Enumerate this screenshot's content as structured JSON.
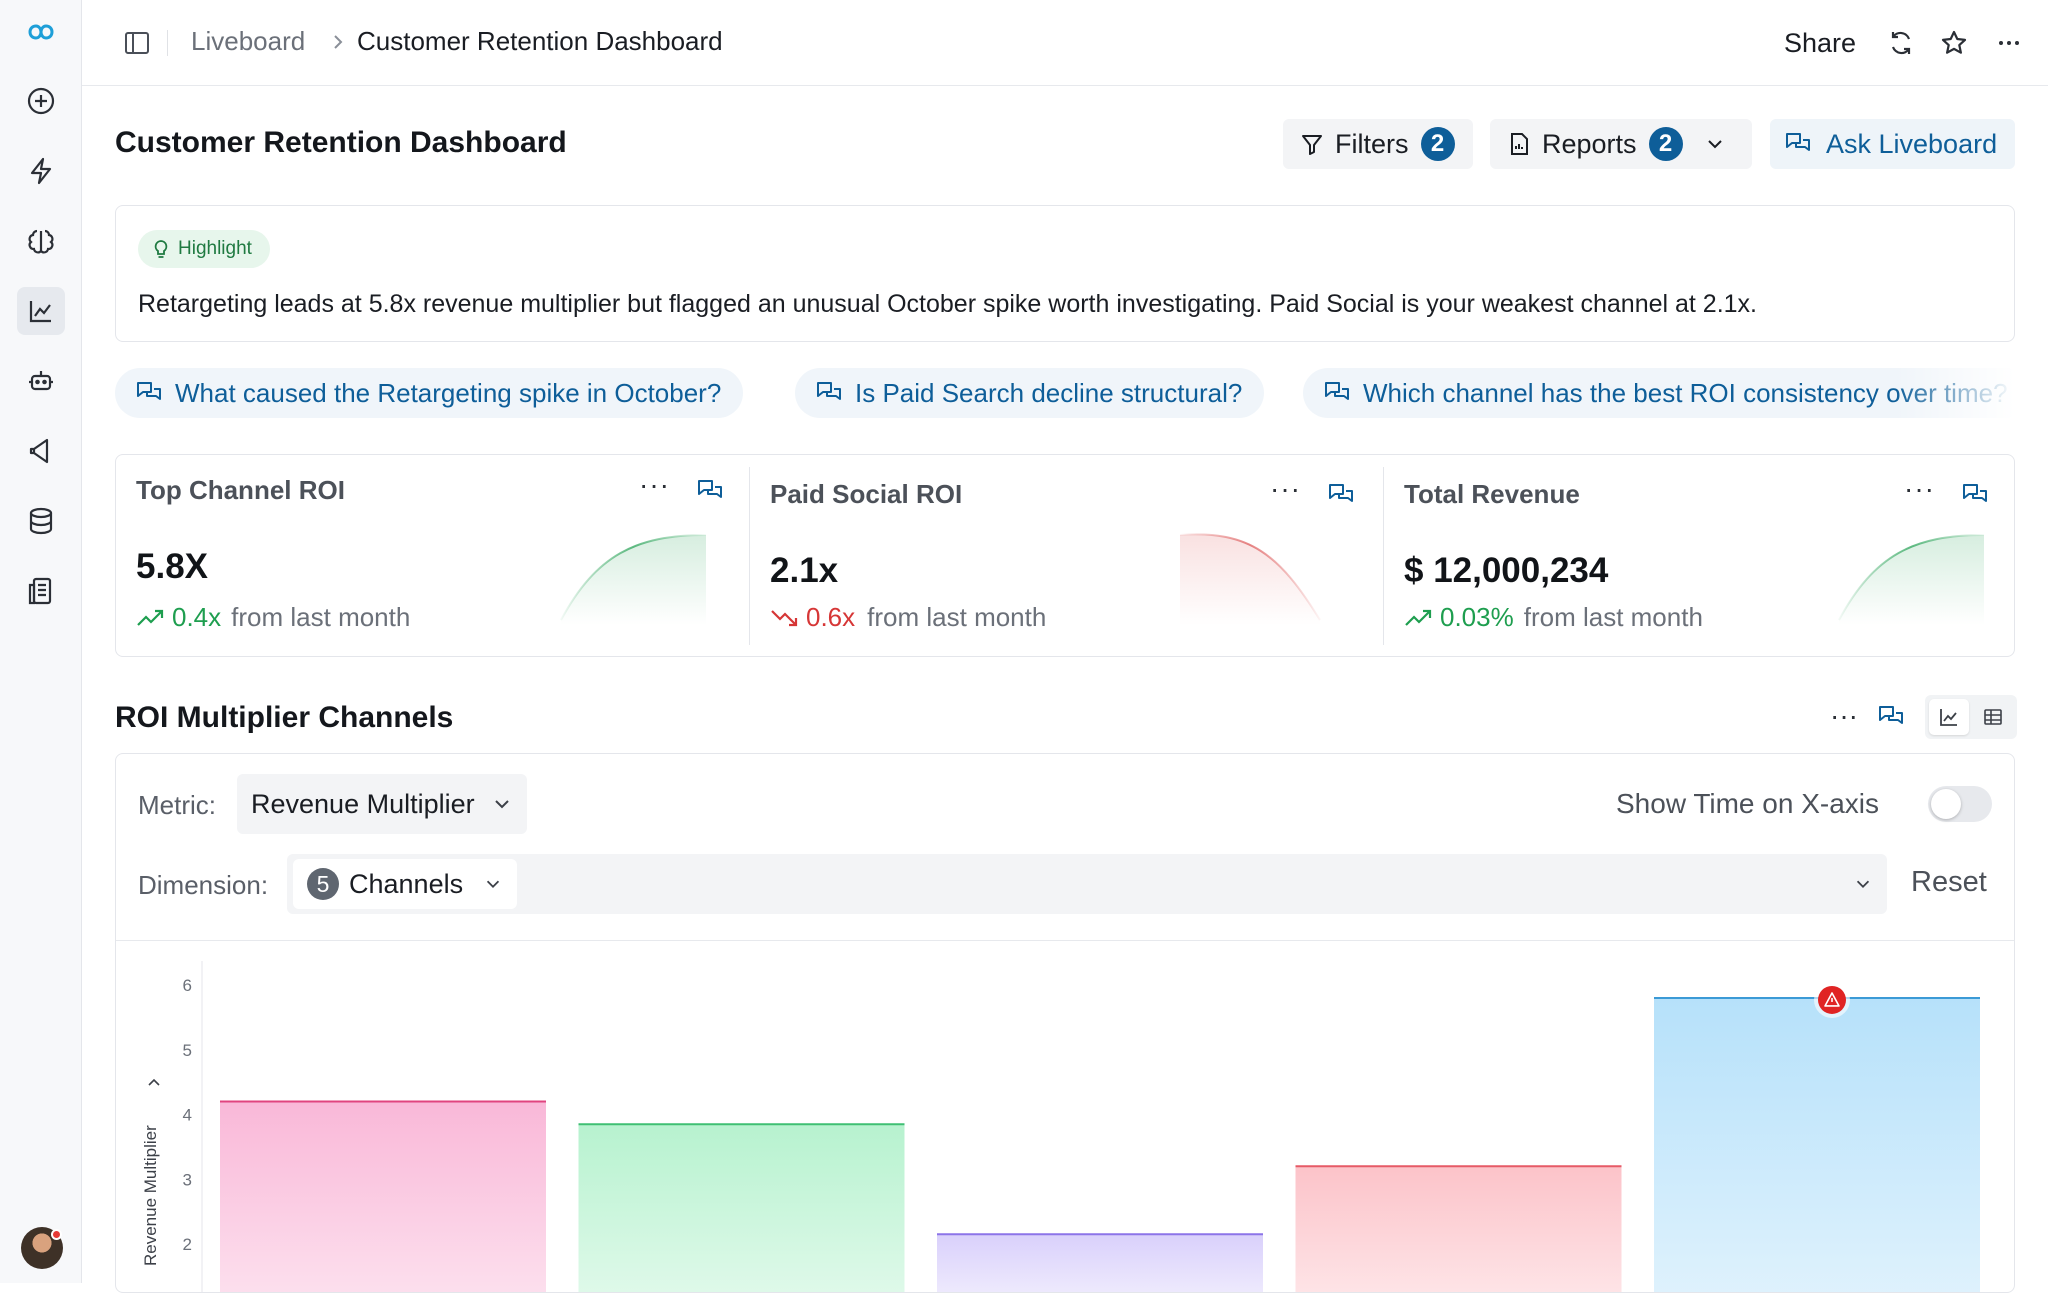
{
  "sidebar": {
    "items": [
      {
        "name": "logo-icon"
      },
      {
        "name": "add-icon"
      },
      {
        "name": "bolt-icon"
      },
      {
        "name": "brain-icon"
      },
      {
        "name": "chart-icon",
        "active": true
      },
      {
        "name": "bot-icon"
      },
      {
        "name": "megaphone-icon"
      },
      {
        "name": "database-icon"
      },
      {
        "name": "report-icon"
      }
    ]
  },
  "topbar": {
    "breadcrumb_parent": "Liveboard",
    "breadcrumb_current": "Customer Retention Dashboard",
    "share_label": "Share"
  },
  "header": {
    "title": "Customer Retention Dashboard",
    "filters_label": "Filters",
    "filters_count": "2",
    "reports_label": "Reports",
    "reports_count": "2",
    "ask_label": "Ask Liveboard"
  },
  "highlight": {
    "pill": "Highlight",
    "text": "Retargeting leads at 5.8x revenue multiplier but flagged an unusual October spike worth investigating. Paid Social is your weakest channel at 2.1x."
  },
  "suggestions": [
    "What caused the Retargeting spike in October?",
    "Is Paid Search decline structural?",
    "Which channel has the best ROI consistency over time?"
  ],
  "kpis": [
    {
      "title": "Top Channel ROI",
      "value": "5.8X",
      "delta": "0.4x",
      "delta_suffix": "from last month",
      "trend": "up",
      "color": "#1e9e4f"
    },
    {
      "title": "Paid Social ROI",
      "value": "2.1x",
      "delta": "0.6x",
      "delta_suffix": "from last month",
      "trend": "down",
      "color": "#d63636"
    },
    {
      "title": "Total Revenue",
      "value": "$ 12,000,234",
      "delta": "0.03%",
      "delta_suffix": "from last month",
      "trend": "up",
      "color": "#1e9e4f"
    }
  ],
  "section": {
    "title": "ROI Multiplier Channels"
  },
  "controls": {
    "metric_label": "Metric:",
    "metric_value": "Revenue Multiplier",
    "dimension_label": "Dimension:",
    "dimension_count": "5",
    "dimension_value": "Channels",
    "toggle_label": "Show Time on X-axis",
    "reset_label": "Reset"
  },
  "chart_data": {
    "type": "bar",
    "ylabel": "Revenue Multiplier",
    "yticks": [
      "6",
      "5",
      "4",
      "3",
      "2"
    ],
    "values": [
      4.2,
      3.85,
      2.15,
      3.2,
      5.8
    ],
    "colors": [
      "#f9b8d8",
      "#b7f2cf",
      "#d9d0fb",
      "#fcc3c9",
      "#b6e1fa"
    ],
    "line_colors": [
      "#e0457f",
      "#3fbf73",
      "#8c74e8",
      "#e65a66",
      "#3b9ad6"
    ],
    "anomaly_index": 4
  }
}
